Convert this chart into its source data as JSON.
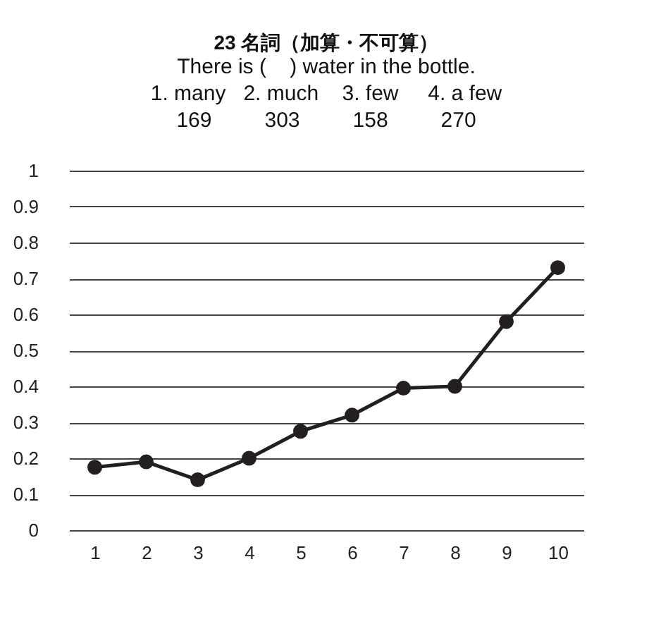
{
  "chart_data": {
    "type": "line",
    "title": "23 名詞（加算・不可算）",
    "subtitle": "There is (    ) water in the bottle.\n1. many   2. much    3. few     4. a few\n169         303         158         270",
    "categories": [
      "1",
      "2",
      "3",
      "4",
      "5",
      "6",
      "7",
      "8",
      "9",
      "10"
    ],
    "series": [
      {
        "color": "#231f20",
        "values": [
          0.175,
          0.19,
          0.14,
          0.2,
          0.275,
          0.32,
          0.395,
          0.4,
          0.58,
          0.73
        ]
      }
    ],
    "ylim": [
      0,
      1
    ],
    "yticks": [
      0,
      0.1,
      0.2,
      0.3,
      0.4,
      0.5,
      0.6,
      0.7,
      0.8,
      0.9,
      1
    ],
    "grid": "y",
    "marker": "circle",
    "line_style": "solid"
  }
}
